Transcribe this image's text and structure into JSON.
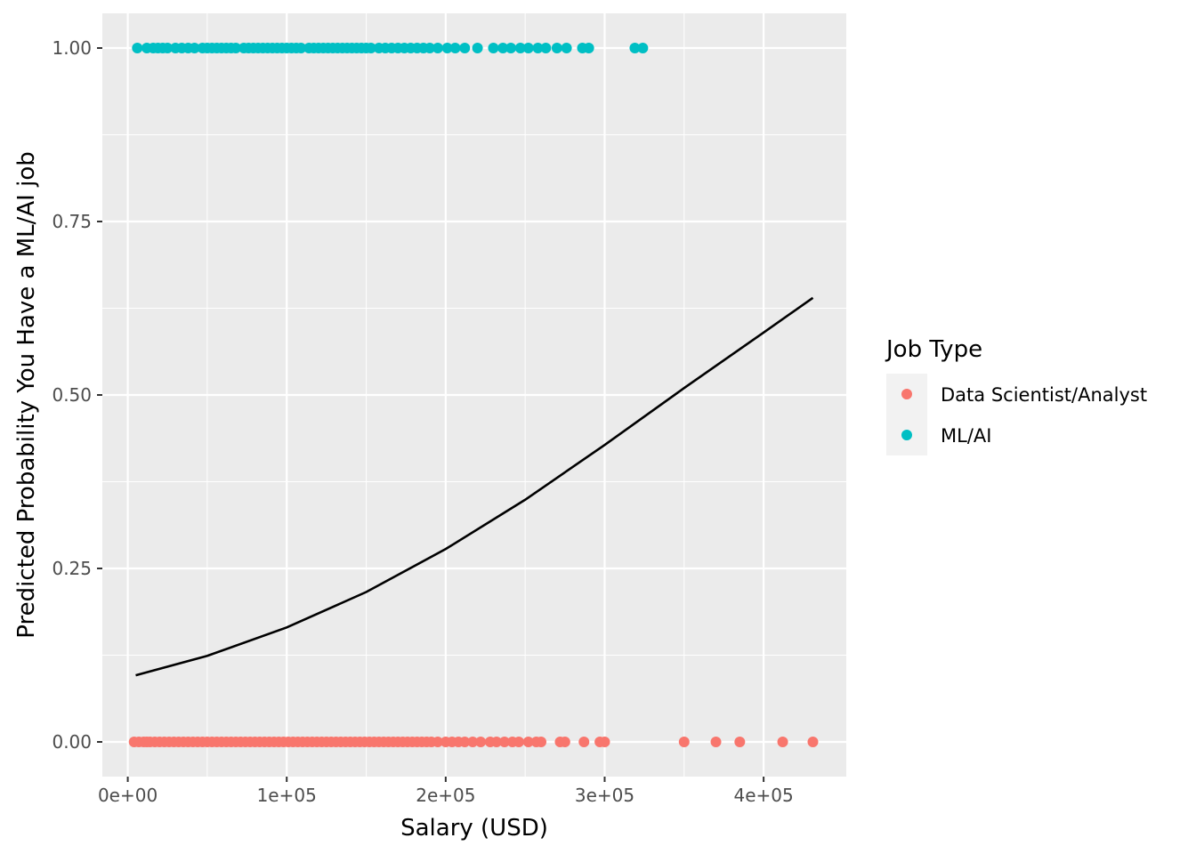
{
  "chart_data": {
    "type": "scatter",
    "title": "",
    "xlabel": "Salary (USD)",
    "ylabel": "Predicted Probability You Have a ML/AI job",
    "xlim": [
      -16000,
      452000
    ],
    "ylim": [
      -0.05,
      1.05
    ],
    "x_ticks": [
      0,
      100000,
      200000,
      300000,
      400000
    ],
    "x_tick_labels": [
      "0e+00",
      "1e+05",
      "2e+05",
      "3e+05",
      "4e+05"
    ],
    "y_ticks": [
      0,
      0.25,
      0.5,
      0.75,
      1.0
    ],
    "y_tick_labels": [
      "0.00",
      "0.25",
      "0.50",
      "0.75",
      "1.00"
    ],
    "grid": true,
    "legend": {
      "title": "Job Type",
      "position": "right",
      "entries": [
        {
          "name": "Data Scientist/Analyst",
          "color": "#F8766D"
        },
        {
          "name": "ML/AI",
          "color": "#00BFC4"
        }
      ]
    },
    "series": [
      {
        "name": "Data Scientist/Analyst",
        "color": "#F8766D",
        "y": 0,
        "x": [
          4000,
          7000,
          10000,
          12000,
          14000,
          17000,
          20000,
          23000,
          26000,
          29000,
          32000,
          35000,
          38000,
          41000,
          44000,
          47000,
          50000,
          53000,
          56000,
          59000,
          62000,
          65000,
          68000,
          71000,
          74000,
          77000,
          80000,
          83000,
          86000,
          89000,
          92000,
          95000,
          98000,
          101000,
          104000,
          107000,
          110000,
          113000,
          116000,
          119000,
          122000,
          125000,
          128000,
          131000,
          134000,
          137000,
          140000,
          143000,
          146000,
          149000,
          152000,
          155000,
          158000,
          161000,
          164000,
          167000,
          170000,
          173000,
          176000,
          179000,
          182000,
          185000,
          188000,
          191000,
          195000,
          200000,
          204000,
          208000,
          212000,
          217000,
          222000,
          228000,
          232000,
          237000,
          242000,
          246000,
          252000,
          257000,
          260000,
          272000,
          275000,
          287000,
          297000,
          300000,
          350000,
          370000,
          385000,
          412000,
          431000
        ]
      },
      {
        "name": "ML/AI",
        "color": "#00BFC4",
        "y": 1,
        "x": [
          6000,
          12000,
          16000,
          19000,
          22000,
          25000,
          30000,
          34000,
          38000,
          42000,
          47000,
          50000,
          53000,
          56000,
          59000,
          62000,
          65000,
          68000,
          73000,
          76000,
          79000,
          82000,
          85000,
          88000,
          91000,
          94000,
          97000,
          100000,
          103000,
          106000,
          109000,
          114000,
          117000,
          120000,
          123000,
          126000,
          129000,
          132000,
          135000,
          138000,
          141000,
          144000,
          147000,
          150000,
          153000,
          158000,
          162000,
          166000,
          170000,
          174000,
          178000,
          182000,
          186000,
          190000,
          195000,
          201000,
          206000,
          212000,
          220000,
          230000,
          236000,
          241000,
          247000,
          252000,
          258000,
          263000,
          270000,
          276000,
          286000,
          290000,
          319000,
          324000
        ]
      }
    ],
    "fit_line": {
      "color": "#000000",
      "x": [
        5000,
        50000,
        100000,
        150000,
        200000,
        250000,
        300000,
        350000,
        400000,
        431000
      ],
      "y": [
        0.096,
        0.124,
        0.165,
        0.216,
        0.278,
        0.349,
        0.428,
        0.51,
        0.59,
        0.64
      ]
    }
  }
}
